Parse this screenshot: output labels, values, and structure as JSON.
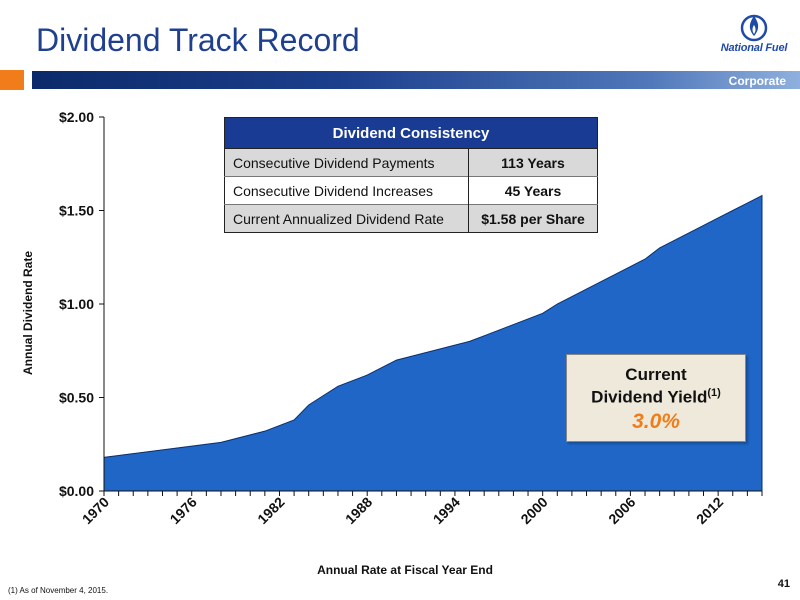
{
  "header": {
    "title": "Dividend Track Record",
    "band_label": "Corporate",
    "logo_text": "National Fuel"
  },
  "colors": {
    "brand_blue": "#1a3b94",
    "accent_orange": "#f07d1a",
    "area_fill": "#1f66c6"
  },
  "table": {
    "title": "Dividend Consistency",
    "rows": [
      {
        "label": "Consecutive Dividend Payments",
        "value": "113 Years"
      },
      {
        "label": "Consecutive Dividend Increases",
        "value": "45 Years"
      },
      {
        "label": "Current Annualized Dividend Rate",
        "value": "$1.58 per Share"
      }
    ]
  },
  "yield_box": {
    "line1": "Current",
    "line2": "Dividend Yield",
    "superscript": "(1)",
    "value": "3.0%"
  },
  "footnote": "(1) As of November 4, 2015.",
  "page_number": "41",
  "chart_data": {
    "type": "area",
    "xlabel": "Annual Rate at Fiscal Year End",
    "ylabel": "Annual Dividend Rate",
    "ylim": [
      0,
      2.0
    ],
    "xlim": [
      1970,
      2015
    ],
    "yticks": [
      0,
      0.5,
      1.0,
      1.5,
      2.0
    ],
    "ytick_labels": [
      "$0.00",
      "$0.50",
      "$1.00",
      "$1.50",
      "$2.00"
    ],
    "xticks_labeled": [
      1970,
      1976,
      1982,
      1988,
      1994,
      2000,
      2006,
      2012
    ],
    "xtick_labels": [
      "1970",
      "1976",
      "1982",
      "1988",
      "1994",
      "2000",
      "2006",
      "2012"
    ],
    "x": [
      1970,
      1971,
      1972,
      1973,
      1974,
      1975,
      1976,
      1977,
      1978,
      1979,
      1980,
      1981,
      1982,
      1983,
      1984,
      1985,
      1986,
      1987,
      1988,
      1989,
      1990,
      1991,
      1992,
      1993,
      1994,
      1995,
      1996,
      1997,
      1998,
      1999,
      2000,
      2001,
      2002,
      2003,
      2004,
      2005,
      2006,
      2007,
      2008,
      2009,
      2010,
      2011,
      2012,
      2013,
      2014,
      2015
    ],
    "y": [
      0.18,
      0.19,
      0.2,
      0.21,
      0.22,
      0.23,
      0.24,
      0.25,
      0.26,
      0.28,
      0.3,
      0.32,
      0.35,
      0.38,
      0.46,
      0.51,
      0.56,
      0.59,
      0.62,
      0.66,
      0.7,
      0.72,
      0.74,
      0.76,
      0.78,
      0.8,
      0.83,
      0.86,
      0.89,
      0.92,
      0.95,
      1.0,
      1.04,
      1.08,
      1.12,
      1.16,
      1.2,
      1.24,
      1.3,
      1.34,
      1.38,
      1.42,
      1.46,
      1.5,
      1.54,
      1.58
    ],
    "grid": false
  }
}
